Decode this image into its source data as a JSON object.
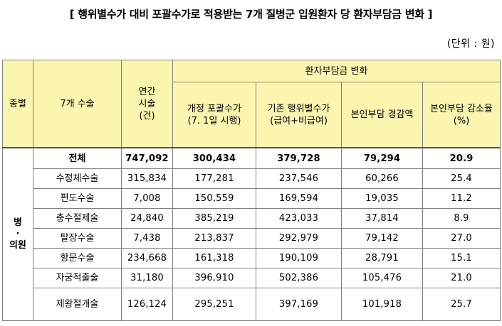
{
  "title": "[ 행위별수가 대비 포괄수가로 적용받는 7개 질병군 입원환자 당 환자부담금 변화 ]",
  "unit": "(단위 : 원)",
  "table": {
    "headers": {
      "category": "종별",
      "surgery": "7개 수술",
      "annual_count_line1": "연간",
      "annual_count_line2": "시술",
      "annual_count_line3": "(건)",
      "group_header": "환자부담금 변화",
      "new_line1": "개정 포괄수가",
      "new_line2": "(7. 1일 시행)",
      "old_line1": "기존 행위별수가",
      "old_line2": "(급여+비급여)",
      "reduction_amount": "본인부담 경감액",
      "reduction_rate": "본인부담 감소율(%)"
    },
    "group_label_line1": "병",
    "group_label_line2": "·",
    "group_label_line3": "의원",
    "rows": [
      {
        "name": "전체",
        "count": "747,092",
        "new_fee": "300,434",
        "old_fee": "379,728",
        "reduction": "79,294",
        "rate": "20.9"
      },
      {
        "name": "수정체수술",
        "count": "315,834",
        "new_fee": "177,281",
        "old_fee": "237,546",
        "reduction": "60,266",
        "rate": "25.4"
      },
      {
        "name": "편도수술",
        "count": "7,008",
        "new_fee": "150,559",
        "old_fee": "169,594",
        "reduction": "19,035",
        "rate": "11.2"
      },
      {
        "name": "충수절제술",
        "count": "24,840",
        "new_fee": "385,219",
        "old_fee": "423,033",
        "reduction": "37,814",
        "rate": "8.9"
      },
      {
        "name": "탈장수술",
        "count": "7,438",
        "new_fee": "213,837",
        "old_fee": "292,979",
        "reduction": "79,142",
        "rate": "27.0"
      },
      {
        "name": "항문수술",
        "count": "234,668",
        "new_fee": "161,318",
        "old_fee": "190,109",
        "reduction": "28,791",
        "rate": "15.1"
      },
      {
        "name": "자궁적출술",
        "count": "31,180",
        "new_fee": "396,910",
        "old_fee": "502,386",
        "reduction": "105,476",
        "rate": "21.0"
      },
      {
        "name": "제왕절개술",
        "count": "126,124",
        "new_fee": "295,251",
        "old_fee": "397,169",
        "reduction": "101,918",
        "rate": "25.7"
      }
    ]
  },
  "colors": {
    "header_background": "#fbf5b0",
    "border": "#808080"
  }
}
